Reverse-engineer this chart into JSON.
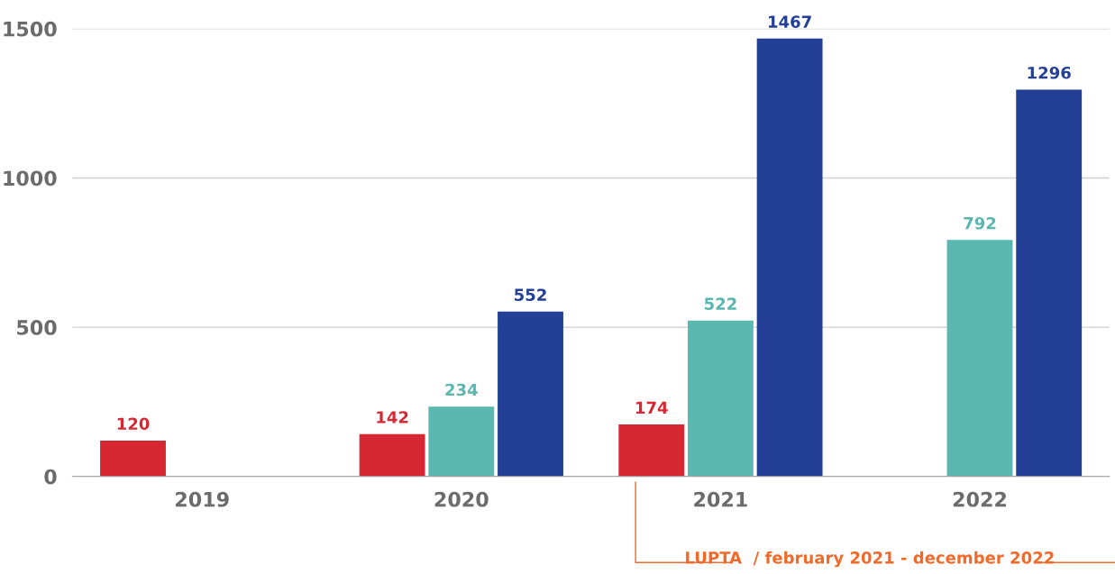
{
  "chart_data": {
    "type": "bar",
    "categories": [
      "2019",
      "2020",
      "2021",
      "2022"
    ],
    "series": [
      {
        "color": "#d62832",
        "values": [
          120,
          142,
          174,
          null
        ]
      },
      {
        "color": "#5bb8b0",
        "values": [
          null,
          234,
          522,
          792
        ]
      },
      {
        "color": "#233f96",
        "values": [
          null,
          552,
          1467,
          1296
        ]
      }
    ],
    "ylim": [
      0,
      1500
    ],
    "yticks": [
      0,
      500,
      1000,
      1500
    ],
    "grid": "y",
    "data_labels": true,
    "annotations": [
      "LUPTA  / february 2021 - december 2022"
    ]
  }
}
